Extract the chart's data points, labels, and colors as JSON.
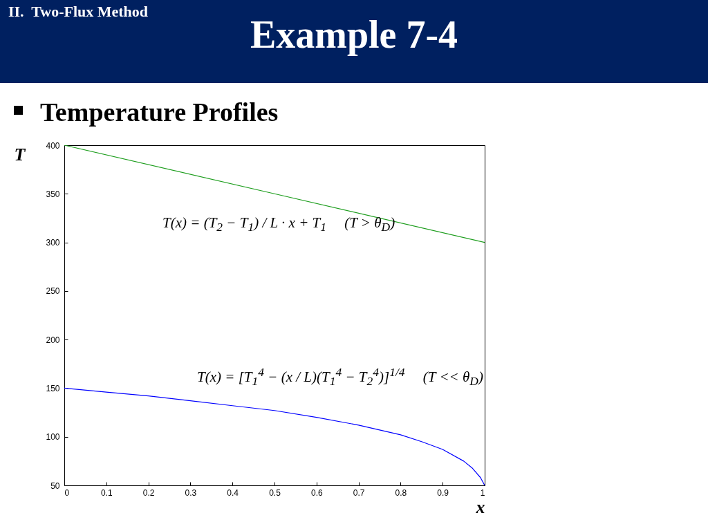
{
  "chart_data": {
    "type": "line",
    "title": "Example 7-4",
    "xlabel": "x",
    "ylabel": "T",
    "annotations": [
      "II.  Two-Flux Method",
      "Temperature Profiles",
      "T(x) = (T$_{2}$ − T$_{1}$) / L · x + T$_{1}$     (T > θ$_{D}$)",
      "T(x) = [T$_{1}$$^{4}$ − (x / L)(T$_{1}$$^{4}$ − T$_{2}$$^{4}$)]$^{1/4}$     (T << θ$_{D}$)"
    ],
    "xlim": [
      0,
      1
    ],
    "xticks": [
      0,
      0.1,
      0.2,
      0.3,
      0.4,
      0.5,
      0.6,
      0.7,
      0.8,
      0.9,
      1
    ],
    "ylim": [
      50,
      400
    ],
    "yticks": [
      50,
      100,
      150,
      200,
      250,
      300,
      350,
      400
    ],
    "series": [
      {
        "color": "#1e9e1e",
        "x": [
          0,
          0.5,
          1
        ],
        "values": [
          400,
          350,
          300
        ]
      },
      {
        "color": "#0000ff",
        "x": [
          0,
          0.1,
          0.2,
          0.3,
          0.4,
          0.5,
          0.6,
          0.7,
          0.8,
          0.85,
          0.9,
          0.95,
          0.97,
          0.99,
          1
        ],
        "values": [
          150,
          146,
          142,
          137,
          132,
          127,
          120,
          112,
          102,
          95,
          87,
          75,
          68,
          58,
          50
        ]
      }
    ]
  }
}
